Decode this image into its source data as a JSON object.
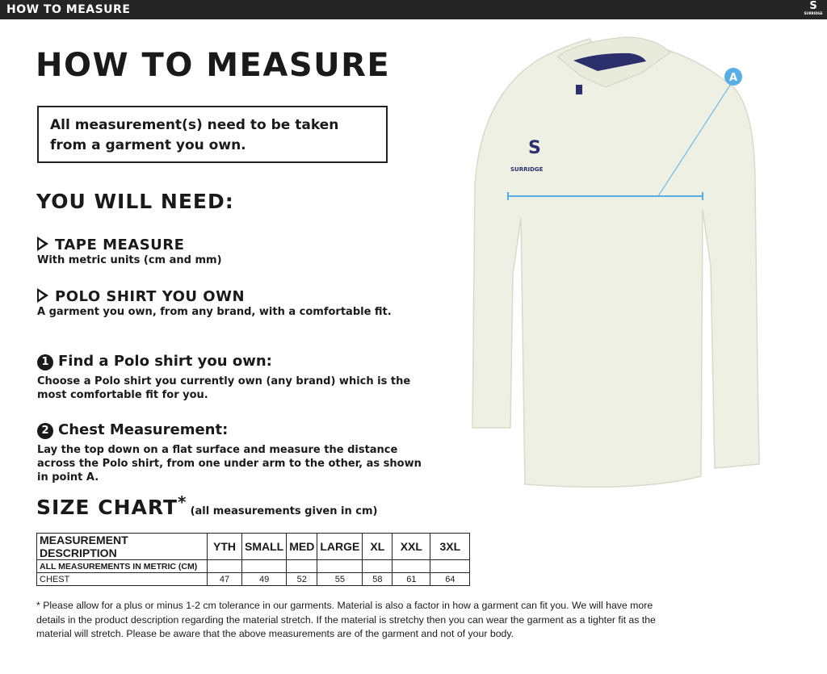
{
  "header": {
    "title": "HOW TO MEASURE",
    "brand": "SURRIDGE"
  },
  "page_title": "HOW TO MEASURE",
  "notice": "All measurement(s) need to be taken from a garment you own.",
  "need": {
    "heading": "YOU WILL NEED:",
    "items": [
      {
        "title": "TAPE MEASURE",
        "desc": "With metric units (cm and mm)"
      },
      {
        "title": "POLO SHIRT YOU OWN",
        "desc": "A garment you own, from any brand, with a comfortable fit."
      }
    ]
  },
  "steps": [
    {
      "num": "1",
      "title": "Find a Polo shirt you own:",
      "desc": "Choose a Polo shirt you currently own (any brand) which is the most comfortable fit for you."
    },
    {
      "num": "2",
      "title": "Chest Measurement:",
      "desc": "Lay the top down on a flat surface and measure the distance across the Polo shirt, from one under arm to the other, as shown in point A."
    }
  ],
  "size_chart": {
    "title": "SIZE CHART",
    "asterisk": "*",
    "note": "(all measurements given in cm)",
    "headers": [
      "MEASUREMENT DESCRIPTION",
      "YTH",
      "SMALL",
      "MED",
      "LARGE",
      "XL",
      "XXL",
      "3XL"
    ],
    "subheader": "ALL MEASUREMENTS IN METRIC (CM)",
    "rows": [
      {
        "label": "CHEST",
        "values": [
          "47",
          "49",
          "52",
          "55",
          "58",
          "61",
          "64"
        ]
      }
    ]
  },
  "footnote": "* Please allow for a plus or minus 1-2 cm tolerance in our garments. Material is also a factor in how a garment can fit you. We will have more details in the product description regarding the material stretch.  If the material is stretchy then you can wear the garment as a tighter fit as the material will stretch.  Please be aware that the above measurements are of the garment and not of your body.",
  "diagram": {
    "point_label": "A",
    "shirt_logo": "SURRIDGE",
    "accent": "#5aaee6",
    "shirt_color": "#eef0e3",
    "collar_color": "#2b2f6b"
  }
}
